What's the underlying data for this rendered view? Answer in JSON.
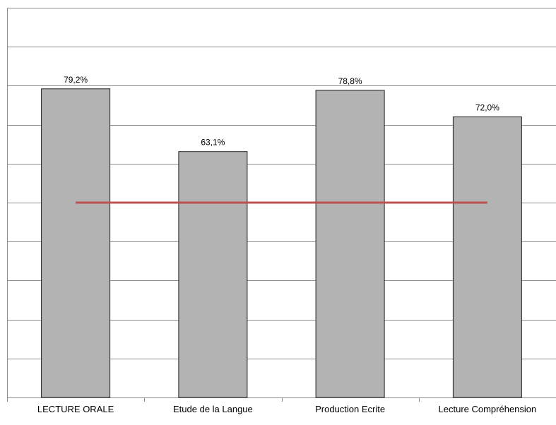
{
  "chart_data": {
    "type": "bar",
    "categories": [
      "LECTURE ORALE",
      "Etude de la Langue",
      "Production Ecrite",
      "Lecture Compréhension"
    ],
    "values": [
      79.2,
      63.1,
      78.8,
      72.0
    ],
    "data_labels": [
      "79,2%",
      "63,1%",
      "78,8%",
      "72,0%"
    ],
    "reference_line": 50,
    "ylim": [
      0,
      100
    ],
    "gridlines": 10,
    "grid": true,
    "legend": "none",
    "colors": {
      "bar": "#b3b3b3",
      "bar_border": "#222222",
      "reference_line": "#c0504d",
      "grid": "#8c8c8c"
    }
  }
}
